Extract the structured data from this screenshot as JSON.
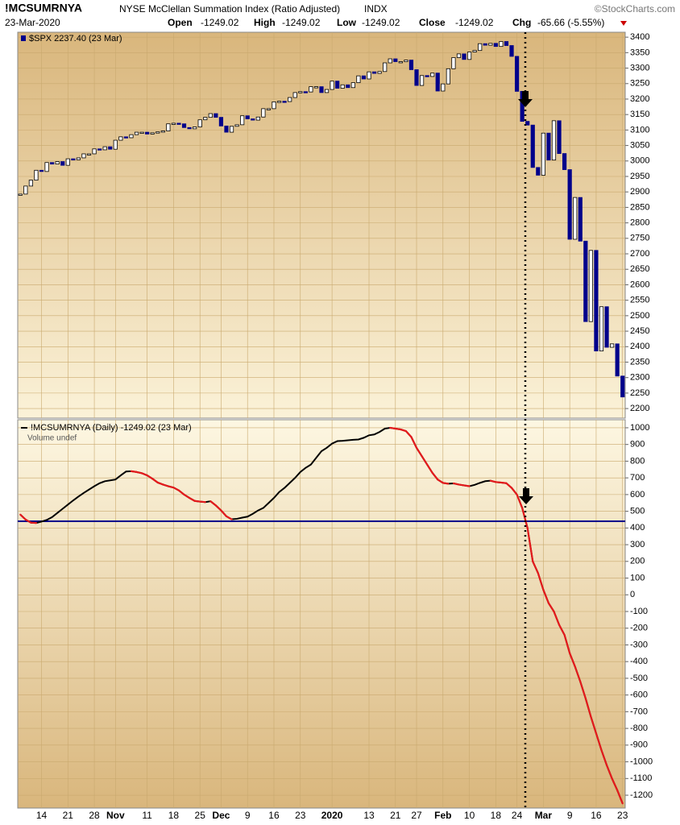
{
  "header": {
    "symbol": "!MCSUMRNYA",
    "name": "NYSE McClellan Summation Index (Ratio Adjusted)",
    "exchange": "INDX",
    "source": "©StockCharts.com",
    "date": "23-Mar-2020",
    "open_label": "Open",
    "open": "-1249.02",
    "high_label": "High",
    "high": "-1249.02",
    "low_label": "Low",
    "low": "-1249.02",
    "close_label": "Close",
    "close": "-1249.02",
    "chg_label": "Chg",
    "chg": "-65.66 (-5.55%)"
  },
  "chart_data": [
    {
      "type": "candlestick",
      "series": [
        {
          "name": "$SPX 2237.40 (23 Mar)",
          "color": "#00008b",
          "values": [
            2893,
            2919,
            2938,
            2970,
            2966,
            2995,
            2990,
            2998,
            2986,
            3007,
            3004,
            3010,
            3023,
            3023,
            3039,
            3036,
            3046,
            3038,
            3067,
            3078,
            3075,
            3085,
            3093,
            3093,
            3087,
            3091,
            3094,
            3097,
            3120,
            3122,
            3120,
            3108,
            3104,
            3110,
            3133,
            3141,
            3153,
            3141,
            3113,
            3093,
            3112,
            3117,
            3146,
            3136,
            3132,
            3142,
            3169,
            3169,
            3191,
            3193,
            3192,
            3205,
            3221,
            3224,
            3223,
            3240,
            3240,
            3221,
            3231,
            3258,
            3235,
            3246,
            3237,
            3253,
            3275,
            3265,
            3288,
            3283,
            3289,
            3317,
            3330,
            3321,
            3321,
            3326,
            3295,
            3244,
            3276,
            3273,
            3284,
            3226,
            3249,
            3298,
            3334,
            3346,
            3328,
            3352,
            3357,
            3379,
            3374,
            3380,
            3370,
            3386,
            3373,
            3338,
            3225,
            3128,
            3116,
            2979,
            2954,
            3090,
            3003,
            3130,
            3024,
            2972,
            2747,
            2882,
            2741,
            2481,
            2711,
            2386,
            2529,
            2398,
            2409,
            2305,
            2237.4
          ]
        }
      ],
      "ylim": [
        2169,
        3416
      ],
      "yticks": [
        2200,
        2250,
        2300,
        2350,
        2400,
        2450,
        2500,
        2550,
        2600,
        2650,
        2700,
        2750,
        2800,
        2850,
        2900,
        2950,
        3000,
        3050,
        3100,
        3150,
        3200,
        3250,
        3300,
        3350,
        3400
      ],
      "grid": true
    },
    {
      "type": "line",
      "categories": [
        null,
        null,
        null,
        null,
        "14",
        null,
        null,
        null,
        null,
        "21",
        null,
        null,
        null,
        null,
        "28",
        null,
        null,
        null,
        "Nov",
        null,
        null,
        null,
        null,
        null,
        "11",
        null,
        null,
        null,
        null,
        "18",
        null,
        null,
        null,
        null,
        "25",
        null,
        null,
        null,
        "Dec",
        null,
        null,
        null,
        null,
        "9",
        null,
        null,
        null,
        null,
        "16",
        null,
        null,
        null,
        null,
        "23",
        null,
        null,
        null,
        null,
        null,
        "2020",
        null,
        null,
        null,
        null,
        null,
        null,
        "13",
        null,
        null,
        null,
        null,
        "21",
        null,
        null,
        null,
        "27",
        null,
        null,
        null,
        null,
        "Feb",
        null,
        null,
        null,
        null,
        "10",
        null,
        null,
        null,
        null,
        "18",
        null,
        null,
        null,
        "24",
        null,
        null,
        null,
        null,
        "Mar",
        null,
        null,
        null,
        null,
        "9",
        null,
        null,
        null,
        null,
        "16",
        null,
        null,
        null,
        null,
        "23"
      ],
      "series": [
        {
          "name": "!MCSUMRNYA (Daily) -1249.02 (23 Mar)",
          "color": "#000000",
          "down_color": "#e41a1c",
          "values": [
            480,
            450,
            432,
            430,
            438,
            448,
            465,
            490,
            515,
            540,
            565,
            588,
            610,
            630,
            650,
            668,
            680,
            685,
            690,
            715,
            738,
            740,
            735,
            728,
            715,
            695,
            672,
            660,
            650,
            642,
            625,
            600,
            580,
            562,
            558,
            555,
            560,
            535,
            505,
            470,
            452,
            455,
            462,
            468,
            485,
            505,
            520,
            550,
            580,
            615,
            640,
            670,
            700,
            735,
            760,
            780,
            820,
            860,
            880,
            905,
            920,
            922,
            925,
            928,
            930,
            940,
            955,
            960,
            975,
            995,
            1000,
            995,
            990,
            980,
            945,
            880,
            830,
            780,
            730,
            690,
            670,
            665,
            667,
            660,
            655,
            650,
            658,
            670,
            680,
            683,
            675,
            672,
            668,
            640,
            600,
            520,
            400,
            200,
            130,
            30,
            -50,
            -100,
            -180,
            -240,
            -350,
            -430,
            -520,
            -620,
            -730,
            -830,
            -930,
            -1020,
            -1100,
            -1170,
            -1249.02
          ]
        }
      ],
      "volume_note": "Volume undef",
      "reference_line": {
        "value": 440,
        "color": "#00008b"
      },
      "ylim": [
        -1277,
        1048
      ],
      "yticks": [
        -1200,
        -1100,
        -1000,
        -900,
        -800,
        -700,
        -600,
        -500,
        -400,
        -300,
        -200,
        -100,
        0,
        100,
        200,
        300,
        400,
        500,
        600,
        700,
        800,
        900,
        1000
      ],
      "grid": true
    }
  ]
}
